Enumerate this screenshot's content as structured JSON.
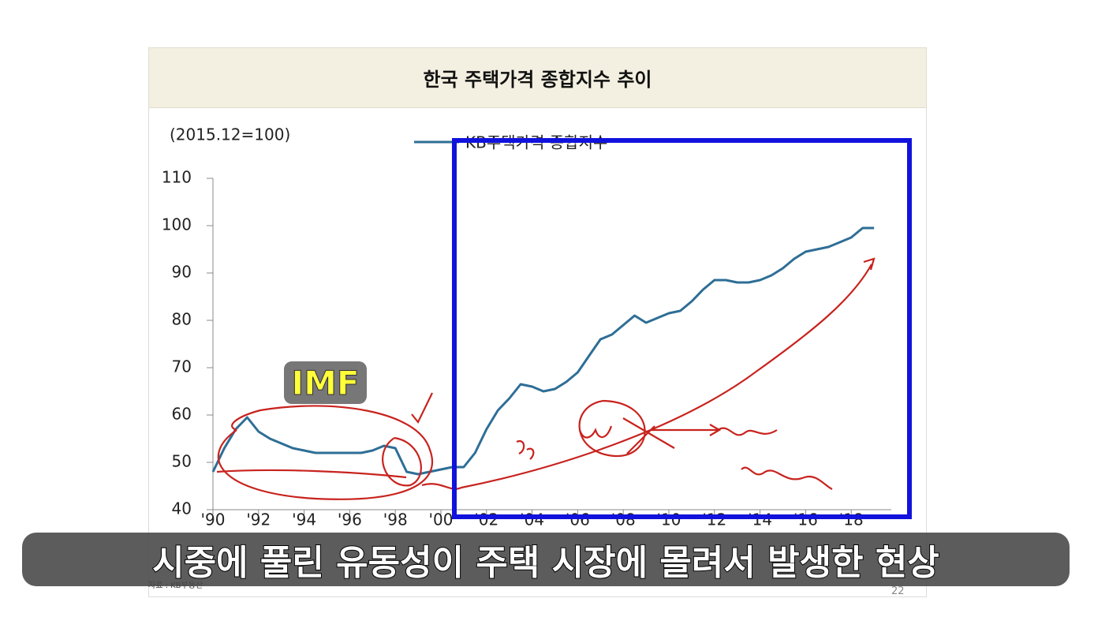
{
  "chart_data": {
    "type": "line",
    "title": "한국 주택가격 종합지수 추이",
    "unit": "(2015.12=100)",
    "annotation": "IMF",
    "source": "자료 : KB부동산",
    "categories": [
      "'90",
      null,
      null,
      null,
      "'92",
      null,
      null,
      null,
      "'94",
      null,
      null,
      null,
      "'96",
      null,
      null,
      null,
      "'98",
      null,
      null,
      null,
      "'00",
      null,
      null,
      null,
      "'02",
      null,
      null,
      null,
      "'04",
      null,
      null,
      null,
      "'06",
      null,
      null,
      null,
      "'08",
      null,
      null,
      null,
      "'10",
      null,
      null,
      null,
      "'12",
      null,
      null,
      null,
      "'14",
      null,
      null,
      null,
      "'16",
      null,
      null,
      null,
      "'18",
      null,
      null
    ],
    "series": [
      {
        "name": "KB주택가격 종합지수",
        "color": "#2e6e96",
        "values": [
          48,
          53,
          57,
          59.5,
          56.5,
          55,
          54,
          53,
          52.5,
          52,
          52,
          52,
          52,
          52,
          52.5,
          53.5,
          53,
          48,
          47.5,
          48,
          48.5,
          49,
          49,
          52,
          57,
          61,
          63.5,
          66.5,
          66,
          65,
          65.5,
          67,
          69,
          72.5,
          76,
          77,
          79,
          81,
          79.5,
          80.5,
          81.5,
          82,
          84,
          86.5,
          88.5,
          88.5,
          88,
          88,
          88.5,
          89.5,
          91,
          93,
          94.5,
          95,
          95.5,
          96.5,
          97.5,
          99.5,
          99.5
        ]
      }
    ],
    "ylim": [
      40,
      110
    ],
    "yticks": [
      40,
      50,
      60,
      70,
      80,
      90,
      100,
      110
    ]
  },
  "caption": "시중에 풀린 유동성이 주택 시장에 몰려서 발생한 현상",
  "page_number": "22"
}
